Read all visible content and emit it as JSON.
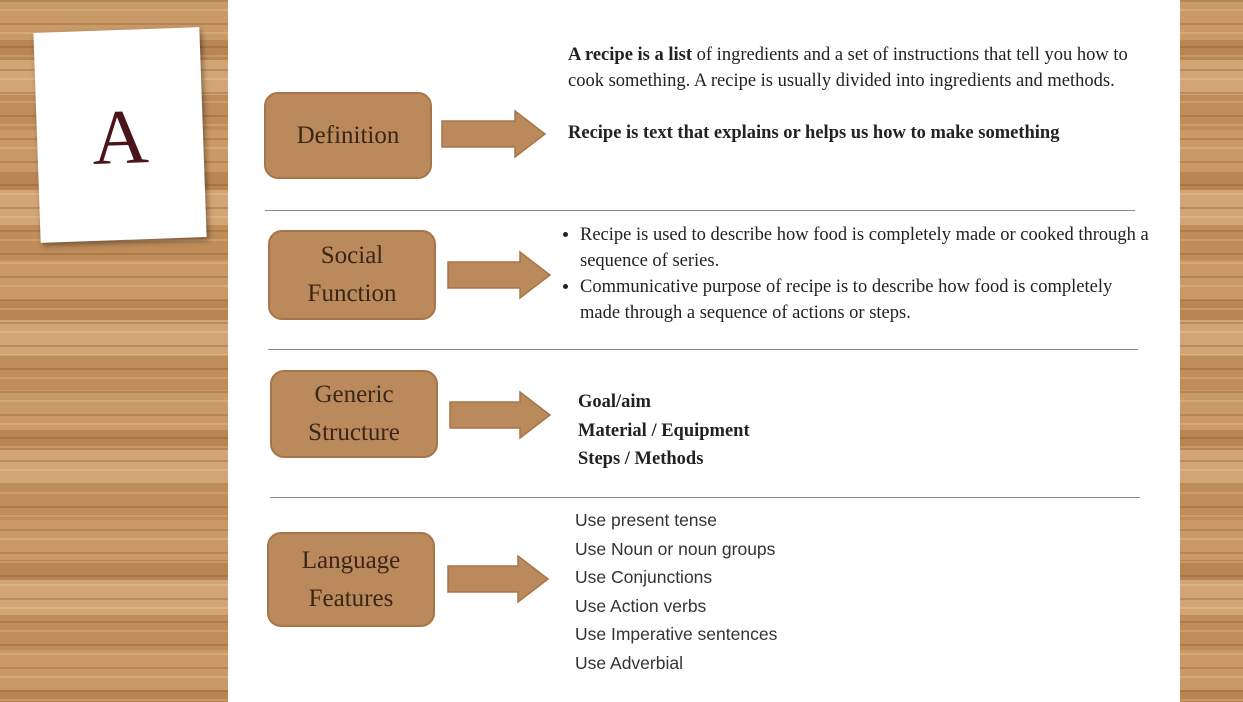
{
  "card": {
    "letter": "A"
  },
  "sections": [
    {
      "label": [
        "Definition"
      ],
      "paragraphs": [
        {
          "bold": "A recipe is a list",
          "text": " of ingredients and a set of instructions that tell you how to cook something. A recipe is usually divided into ingredients and methods."
        },
        {
          "bold": "Recipe is text that explains or helps us how to make something",
          "text": ""
        }
      ]
    },
    {
      "label": [
        "Social",
        "Function"
      ],
      "bullets": [
        "Recipe is used to describe how food is completely made or cooked through a sequence of series.",
        "Communicative purpose of recipe is to describe how food  is completely made through a sequence of actions or steps."
      ]
    },
    {
      "label": [
        "Generic",
        "Structure"
      ],
      "items": [
        "Goal/aim",
        "Material / Equipment",
        "Steps / Methods"
      ]
    },
    {
      "label": [
        "Language",
        "Features"
      ],
      "items": [
        "Use present tense",
        "Use Noun or noun groups",
        "Use Conjunctions",
        "Use Action verbs",
        "Use Imperative sentences",
        "Use Adverbial"
      ]
    }
  ]
}
